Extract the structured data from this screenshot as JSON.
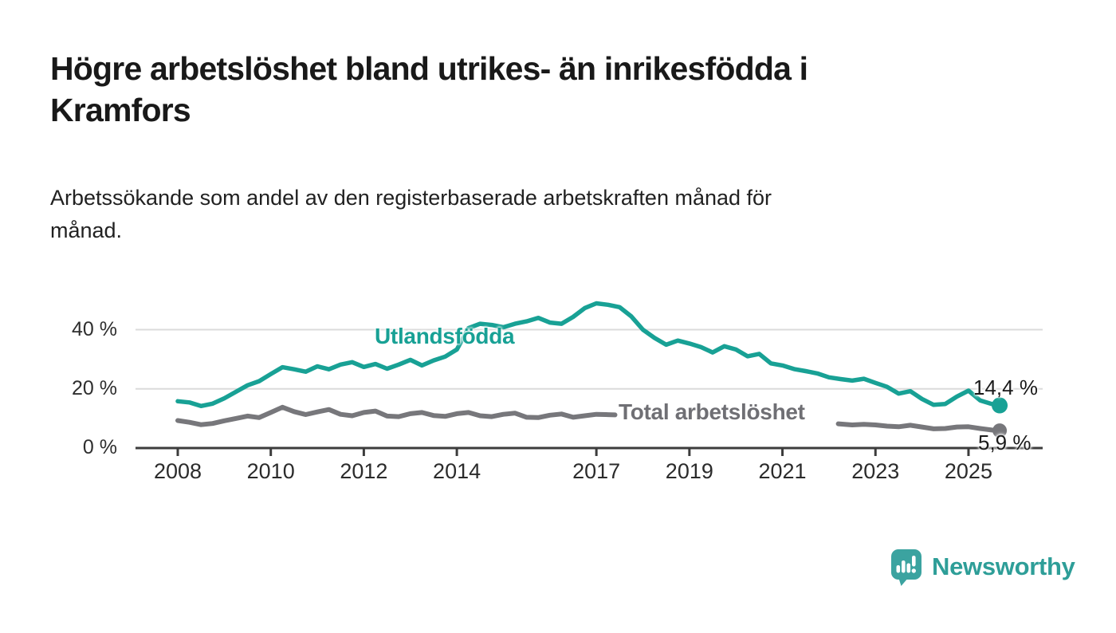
{
  "header": {
    "title": "Högre arbetslöshet bland utrikes- än inrikesfödda i\nKramfors",
    "subtitle": "Arbetssökande som andel av den registerbaserade arbetskraften månad för\nmånad."
  },
  "chart_data": {
    "type": "line",
    "title": "Högre arbetslöshet bland utrikes- än inrikesfödda i Kramfors",
    "subtitle": "Arbetssökande som andel av den registerbaserade arbetskraften månad för månad.",
    "x_axis": {
      "ticks": [
        2008,
        2010,
        2012,
        2014,
        2017,
        2019,
        2021,
        2023,
        2025
      ],
      "tick_labels": [
        "2008",
        "2010",
        "2012",
        "2014",
        "2017",
        "2019",
        "2021",
        "2023",
        "2025"
      ],
      "range": [
        2007.1,
        2026.6
      ]
    },
    "y_axis": {
      "ticks": [
        0,
        20,
        40
      ],
      "tick_labels": [
        "0 %",
        "20 %",
        "40 %"
      ],
      "range": [
        0,
        50.5
      ],
      "unit": "%"
    },
    "grid": "horizontal",
    "legend_position": "inline-labels",
    "series": [
      {
        "name": "Utlandsfödda",
        "color": "#18A195",
        "end_value": 14.4,
        "end_label": "14,4 %",
        "points": [
          [
            2008,
            15.8
          ],
          [
            2008.25,
            15.4
          ],
          [
            2008.5,
            14.2
          ],
          [
            2008.75,
            15
          ],
          [
            2009,
            16.8
          ],
          [
            2009.25,
            19
          ],
          [
            2009.5,
            21.2
          ],
          [
            2009.75,
            22.6
          ],
          [
            2010,
            25
          ],
          [
            2010.25,
            27.3
          ],
          [
            2010.5,
            26.6
          ],
          [
            2010.75,
            25.8
          ],
          [
            2011,
            27.6
          ],
          [
            2011.25,
            26.6
          ],
          [
            2011.5,
            28.2
          ],
          [
            2011.75,
            29
          ],
          [
            2012,
            27.4
          ],
          [
            2012.25,
            28.4
          ],
          [
            2012.5,
            26.8
          ],
          [
            2012.75,
            28.2
          ],
          [
            2013,
            29.8
          ],
          [
            2013.25,
            27.9
          ],
          [
            2013.5,
            29.6
          ],
          [
            2013.75,
            30.9
          ],
          [
            2014,
            33.3
          ],
          [
            2014.25,
            40.5
          ],
          [
            2014.5,
            42
          ],
          [
            2014.75,
            41.6
          ],
          [
            2015,
            40.8
          ],
          [
            2015.25,
            42
          ],
          [
            2015.5,
            42.8
          ],
          [
            2015.75,
            44
          ],
          [
            2016,
            42.4
          ],
          [
            2016.25,
            42
          ],
          [
            2016.5,
            44.3
          ],
          [
            2016.75,
            47.3
          ],
          [
            2017,
            48.9
          ],
          [
            2017.25,
            48.4
          ],
          [
            2017.5,
            47.6
          ],
          [
            2017.75,
            44.5
          ],
          [
            2018,
            40
          ],
          [
            2018.25,
            37.2
          ],
          [
            2018.5,
            34.9
          ],
          [
            2018.75,
            36.3
          ],
          [
            2019,
            35.3
          ],
          [
            2019.25,
            34.1
          ],
          [
            2019.5,
            32.3
          ],
          [
            2019.75,
            34.4
          ],
          [
            2020,
            33.3
          ],
          [
            2020.25,
            31
          ],
          [
            2020.5,
            31.8
          ],
          [
            2020.75,
            28.6
          ],
          [
            2021,
            27.9
          ],
          [
            2021.25,
            26.7
          ],
          [
            2021.5,
            26
          ],
          [
            2021.75,
            25.2
          ],
          [
            2022,
            23.9
          ],
          [
            2022.25,
            23.3
          ],
          [
            2022.5,
            22.8
          ],
          [
            2022.75,
            23.4
          ],
          [
            2023,
            22
          ],
          [
            2023.25,
            20.7
          ],
          [
            2023.5,
            18.4
          ],
          [
            2023.75,
            19.2
          ],
          [
            2024,
            16.6
          ],
          [
            2024.25,
            14.6
          ],
          [
            2024.5,
            14.9
          ],
          [
            2024.75,
            17.4
          ],
          [
            2025,
            19.4
          ],
          [
            2025.25,
            16.1
          ],
          [
            2025.5,
            14.9
          ],
          [
            2025.67,
            14.4
          ]
        ]
      },
      {
        "name": "Total arbetslöshet",
        "color": "#77777B",
        "end_value": 5.9,
        "end_label": "5,9 %",
        "points": [
          [
            2008,
            9.3
          ],
          [
            2008.25,
            8.7
          ],
          [
            2008.5,
            7.9
          ],
          [
            2008.75,
            8.3
          ],
          [
            2009,
            9.2
          ],
          [
            2009.25,
            10
          ],
          [
            2009.5,
            10.8
          ],
          [
            2009.75,
            10.3
          ],
          [
            2010,
            12
          ],
          [
            2010.25,
            13.8
          ],
          [
            2010.5,
            12.3
          ],
          [
            2010.75,
            11.3
          ],
          [
            2011,
            12.2
          ],
          [
            2011.25,
            13
          ],
          [
            2011.5,
            11.4
          ],
          [
            2011.75,
            10.9
          ],
          [
            2012,
            12
          ],
          [
            2012.25,
            12.5
          ],
          [
            2012.5,
            10.8
          ],
          [
            2012.75,
            10.6
          ],
          [
            2013,
            11.6
          ],
          [
            2013.25,
            12
          ],
          [
            2013.5,
            11
          ],
          [
            2013.75,
            10.7
          ],
          [
            2014,
            11.6
          ],
          [
            2014.25,
            12
          ],
          [
            2014.5,
            10.9
          ],
          [
            2014.75,
            10.6
          ],
          [
            2015,
            11.4
          ],
          [
            2015.25,
            11.8
          ],
          [
            2015.5,
            10.4
          ],
          [
            2015.75,
            10.3
          ],
          [
            2016,
            11.1
          ],
          [
            2016.25,
            11.5
          ],
          [
            2016.5,
            10.4
          ],
          [
            2016.75,
            10.9
          ],
          [
            2017,
            11.4
          ],
          [
            2017.2,
            11.3
          ],
          [
            2017.4,
            11.2
          ],
          [
            null,
            null
          ],
          [
            2022.2,
            8.2
          ],
          [
            2022.5,
            7.8
          ],
          [
            2022.75,
            8
          ],
          [
            2023,
            7.8
          ],
          [
            2023.25,
            7.4
          ],
          [
            2023.5,
            7.2
          ],
          [
            2023.75,
            7.7
          ],
          [
            2024,
            7.1
          ],
          [
            2024.25,
            6.5
          ],
          [
            2024.5,
            6.6
          ],
          [
            2024.75,
            7.1
          ],
          [
            2025,
            7.2
          ],
          [
            2025.25,
            6.6
          ],
          [
            2025.5,
            6.1
          ],
          [
            2025.67,
            5.9
          ]
        ]
      }
    ]
  },
  "colors": {
    "accent_teal": "#18A195",
    "line_gray": "#77777B",
    "label_gray": "#6F6F74",
    "gridline": "#DBDBDB",
    "axis": "#3C3C3C",
    "text_dark": "#191919",
    "logo_teal": "#2E9E98",
    "logo_icon_teal": "#3BA3A0"
  },
  "branding": {
    "logo_text": "Newsworthy",
    "logo_icon": "bar-chart-speech-bubble-icon"
  }
}
